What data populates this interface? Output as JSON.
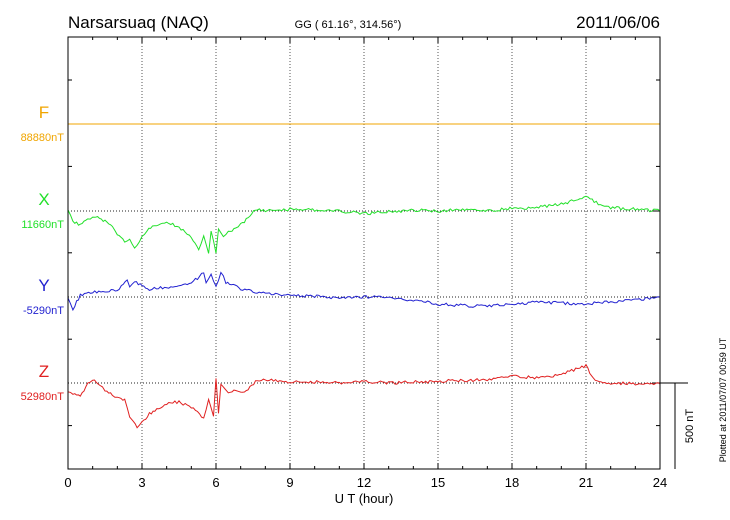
{
  "header": {
    "station": "Narsarsuaq (NAQ)",
    "coords": "GG ( 61.16°, 314.56°)",
    "date": "2011/06/06"
  },
  "footer": {
    "plotted": "Plotted at 2011/07/07 00:59 UT"
  },
  "scale_bar": {
    "label": "500 nT",
    "value_nT": 500
  },
  "chart_data": {
    "type": "line",
    "title": "Narsarsuaq (NAQ)",
    "xlabel": "U T (hour)",
    "ylabel": "",
    "xlim": [
      0,
      24
    ],
    "x_ticks": [
      0,
      3,
      6,
      9,
      12,
      15,
      18,
      21,
      24
    ],
    "grid": true,
    "series": [
      {
        "name": "F",
        "baseline_label": "88880nT",
        "color": "#f0a500",
        "x": [
          0,
          24
        ],
        "values": [
          0,
          0
        ]
      },
      {
        "name": "X",
        "baseline_label": "11660nT",
        "color": "#22e02a",
        "x": [
          0,
          0.2,
          0.5,
          0.8,
          1.0,
          1.2,
          1.5,
          1.8,
          2.0,
          2.3,
          2.5,
          2.7,
          2.8,
          3.0,
          3.2,
          3.5,
          4.0,
          4.5,
          5.0,
          5.3,
          5.5,
          5.7,
          5.8,
          6.0,
          6.1,
          6.3,
          6.5,
          6.8,
          7.0,
          7.3,
          7.6,
          8.0,
          9.0,
          10.0,
          11.0,
          12.0,
          13.0,
          14.0,
          15.0,
          16.0,
          17.0,
          18.0,
          19.0,
          20.0,
          20.5,
          21.0,
          21.5,
          22.0,
          23.0,
          24.0
        ],
        "values": [
          0,
          -60,
          -80,
          -50,
          -30,
          -40,
          -60,
          -90,
          -130,
          -180,
          -170,
          -220,
          -200,
          -150,
          -110,
          -80,
          -70,
          -90,
          -160,
          -220,
          -150,
          -240,
          -120,
          -240,
          -100,
          -150,
          -120,
          -100,
          -80,
          -40,
          10,
          0,
          10,
          5,
          0,
          -15,
          -5,
          5,
          0,
          10,
          0,
          15,
          20,
          40,
          60,
          90,
          40,
          20,
          10,
          0
        ]
      },
      {
        "name": "Y",
        "baseline_label": "-5290nT",
        "color": "#2222d0",
        "x": [
          0,
          0.2,
          0.5,
          1.0,
          1.5,
          2.0,
          2.4,
          2.5,
          2.7,
          3.0,
          3.3,
          3.5,
          4.0,
          4.5,
          5.0,
          5.5,
          5.6,
          5.8,
          6.0,
          6.2,
          6.4,
          6.7,
          7.0,
          7.5,
          8.0,
          9.0,
          10.0,
          11.0,
          12.0,
          13.0,
          14.0,
          15.0,
          16.0,
          17.0,
          18.0,
          19.0,
          20.0,
          21.0,
          22.0,
          23.0,
          24.0
        ],
        "values": [
          0,
          -70,
          10,
          25,
          35,
          40,
          100,
          60,
          90,
          70,
          40,
          55,
          50,
          70,
          80,
          140,
          90,
          130,
          60,
          150,
          80,
          70,
          50,
          30,
          25,
          10,
          5,
          -5,
          0,
          0,
          -20,
          -40,
          -50,
          -55,
          -40,
          -30,
          -35,
          -40,
          -30,
          -15,
          0
        ]
      },
      {
        "name": "Z",
        "baseline_label": "52980nT",
        "color": "#e02020",
        "x": [
          0,
          0.2,
          0.5,
          0.8,
          1.0,
          1.3,
          1.5,
          1.8,
          2.0,
          2.3,
          2.5,
          2.8,
          3.0,
          3.3,
          3.6,
          4.0,
          4.5,
          5.0,
          5.5,
          5.7,
          5.9,
          6.0,
          6.1,
          6.2,
          6.5,
          6.8,
          7.0,
          7.3,
          7.6,
          8.0,
          9.0,
          10.0,
          11.0,
          12.0,
          13.0,
          14.0,
          15.0,
          16.0,
          17.0,
          18.0,
          19.0,
          20.0,
          21.0,
          21.3,
          22.0,
          23.0,
          24.0
        ],
        "values": [
          -50,
          -60,
          -80,
          0,
          20,
          -20,
          -40,
          -70,
          -80,
          -100,
          -200,
          -260,
          -230,
          -180,
          -150,
          -120,
          -110,
          -140,
          -200,
          -100,
          -200,
          20,
          -180,
          0,
          -60,
          -40,
          -60,
          -40,
          10,
          20,
          5,
          5,
          0,
          10,
          0,
          5,
          10,
          15,
          20,
          40,
          30,
          50,
          100,
          20,
          0,
          -5,
          -5
        ]
      }
    ]
  }
}
